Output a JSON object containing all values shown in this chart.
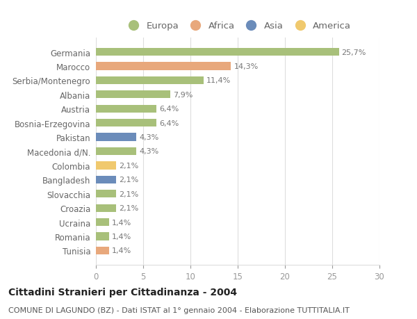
{
  "countries": [
    "Germania",
    "Marocco",
    "Serbia/Montenegro",
    "Albania",
    "Austria",
    "Bosnia-Erzegovina",
    "Pakistan",
    "Macedonia d/N.",
    "Colombia",
    "Bangladesh",
    "Slovacchia",
    "Croazia",
    "Ucraina",
    "Romania",
    "Tunisia"
  ],
  "values": [
    25.7,
    14.3,
    11.4,
    7.9,
    6.4,
    6.4,
    4.3,
    4.3,
    2.1,
    2.1,
    2.1,
    2.1,
    1.4,
    1.4,
    1.4
  ],
  "labels": [
    "25,7%",
    "14,3%",
    "11,4%",
    "7,9%",
    "6,4%",
    "6,4%",
    "4,3%",
    "4,3%",
    "2,1%",
    "2,1%",
    "2,1%",
    "2,1%",
    "1,4%",
    "1,4%",
    "1,4%"
  ],
  "continents": [
    "Europa",
    "Africa",
    "Europa",
    "Europa",
    "Europa",
    "Europa",
    "Asia",
    "Europa",
    "America",
    "Asia",
    "Europa",
    "Europa",
    "Europa",
    "Europa",
    "Africa"
  ],
  "colors": {
    "Europa": "#a8c07a",
    "Africa": "#e8a87c",
    "Asia": "#6b8cba",
    "America": "#f0c96e"
  },
  "legend_order": [
    "Europa",
    "Africa",
    "Asia",
    "America"
  ],
  "title": "Cittadini Stranieri per Cittadinanza - 2004",
  "subtitle": "COMUNE DI LAGUNDO (BZ) - Dati ISTAT al 1° gennaio 2004 - Elaborazione TUTTITALIA.IT",
  "xlim": [
    0,
    30
  ],
  "xticks": [
    0,
    5,
    10,
    15,
    20,
    25,
    30
  ],
  "bg_color": "#ffffff",
  "grid_color": "#dddddd",
  "bar_height": 0.55,
  "title_fontsize": 10,
  "subtitle_fontsize": 8,
  "label_fontsize": 8,
  "tick_fontsize": 8.5,
  "legend_fontsize": 9.5
}
